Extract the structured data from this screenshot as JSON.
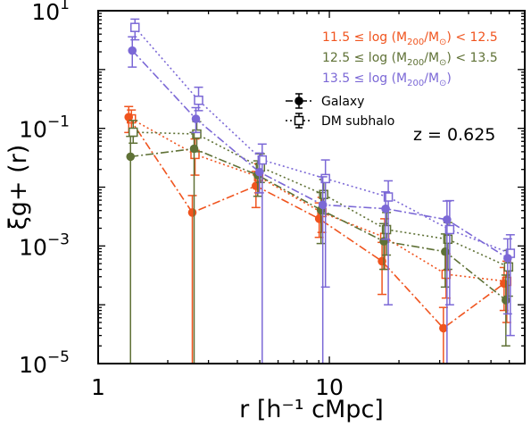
{
  "chart_data": {
    "type": "line",
    "xscale": "log",
    "yscale": "log",
    "xlim": [
      1,
      70
    ],
    "ylim": [
      1e-05,
      10
    ],
    "xlabel": "r [h⁻¹ cMpc]",
    "ylabel": "ξg+ (r)",
    "x_ticks": [
      {
        "value": 1,
        "base": "1",
        "exp": ""
      },
      {
        "value": 10,
        "base": "10",
        "exp": ""
      }
    ],
    "y_ticks": [
      {
        "value": 1e-05,
        "base": "10",
        "exp": "−5"
      },
      {
        "value": 0.001,
        "base": "10",
        "exp": "−3"
      },
      {
        "value": 0.1,
        "base": "10",
        "exp": "−1"
      },
      {
        "value": 10,
        "base": "10",
        "exp": "1"
      }
    ],
    "x": [
      1.38,
      2.6,
      4.9,
      9.2,
      17.2,
      31.7,
      58.0
    ],
    "series": [
      {
        "name": "11.5 ≤ log (M200/M⊙) < 12.5",
        "color": "#f0541e",
        "galaxy": {
          "values": [
            0.155,
            0.0037,
            0.0105,
            0.0029,
            0.00055,
            4e-05,
            0.00023
          ],
          "err_lo": [
            0.07,
            0.0037,
            0.006,
            0.0015,
            0.0004,
            3.5e-05,
            0.00015
          ],
          "err_hi": [
            0.08,
            0.0035,
            0.008,
            0.0025,
            0.0006,
            5e-05,
            0.0002
          ]
        },
        "subhalo": {
          "values": [
            0.145,
            0.036,
            0.015,
            0.0037,
            0.0014,
            0.00033,
            0.00025
          ],
          "err_lo": [
            0.06,
            0.02,
            0.007,
            0.002,
            0.001,
            0.0002,
            0.0002
          ],
          "err_hi": [
            0.06,
            0.03,
            0.01,
            0.003,
            0.0015,
            0.0004,
            0.0003
          ]
        }
      },
      {
        "name": "12.5 ≤ log (M200/M⊙) < 13.5",
        "color": "#5f7136",
        "galaxy": {
          "values": [
            0.033,
            0.045,
            0.016,
            0.0041,
            0.0012,
            0.0008,
            0.00012
          ],
          "err_lo": [
            0.033,
            0.045,
            0.009,
            0.003,
            0.0008,
            0.0006,
            0.0001
          ],
          "err_hi": [
            0.04,
            0.04,
            0.012,
            0.004,
            0.0012,
            0.0008,
            0.0002
          ]
        },
        "subhalo": {
          "values": [
            0.086,
            0.08,
            0.022,
            0.0075,
            0.0019,
            0.0013,
            0.00044
          ],
          "err_lo": [
            0.03,
            0.04,
            0.01,
            0.004,
            0.0012,
            0.0009,
            0.0003
          ],
          "err_hi": [
            0.05,
            0.05,
            0.015,
            0.006,
            0.0018,
            0.0012,
            0.0004
          ]
        }
      },
      {
        "name": "13.5 ≤ log (M200/M⊙)",
        "color": "#7b68d6",
        "galaxy": {
          "values": [
            2.1,
            0.145,
            0.018,
            0.005,
            0.0043,
            0.0028,
            0.00062
          ],
          "err_lo": [
            1.0,
            0.06,
            0.01,
            0.005,
            0.003,
            0.0028,
            0.00055
          ],
          "err_hi": [
            1.5,
            0.08,
            0.02,
            0.01,
            0.004,
            0.003,
            0.0007
          ]
        },
        "subhalo": {
          "values": [
            5.2,
            0.3,
            0.029,
            0.014,
            0.0068,
            0.0019,
            0.00075
          ],
          "err_lo": [
            2.0,
            0.1,
            0.029,
            0.0138,
            0.0067,
            0.0018,
            0.00072
          ],
          "err_hi": [
            2.0,
            0.2,
            0.025,
            0.015,
            0.006,
            0.004,
            0.0008
          ]
        }
      }
    ],
    "legend_style": [
      {
        "label": "Galaxy",
        "marker": "filled-circle",
        "line": "dash-dot"
      },
      {
        "label": "DM subhalo",
        "marker": "open-square",
        "line": "dotted"
      }
    ],
    "mass_legend": [
      {
        "color": "#f0541e",
        "pre": "11.5 ≤ log (M",
        "sub": "200",
        "mid": "/M",
        "sub2": "⊙",
        "post": ") < 12.5"
      },
      {
        "color": "#5f7136",
        "pre": "12.5 ≤ log (M",
        "sub": "200",
        "mid": "/M",
        "sub2": "⊙",
        "post": ") < 13.5"
      },
      {
        "color": "#7b68d6",
        "pre": "13.5 ≤ log (M",
        "sub": "200",
        "mid": "/M",
        "sub2": "⊙",
        "post": ")"
      }
    ],
    "annotation": "z = 0.625",
    "grid": false,
    "legend_placement": "top-right"
  }
}
